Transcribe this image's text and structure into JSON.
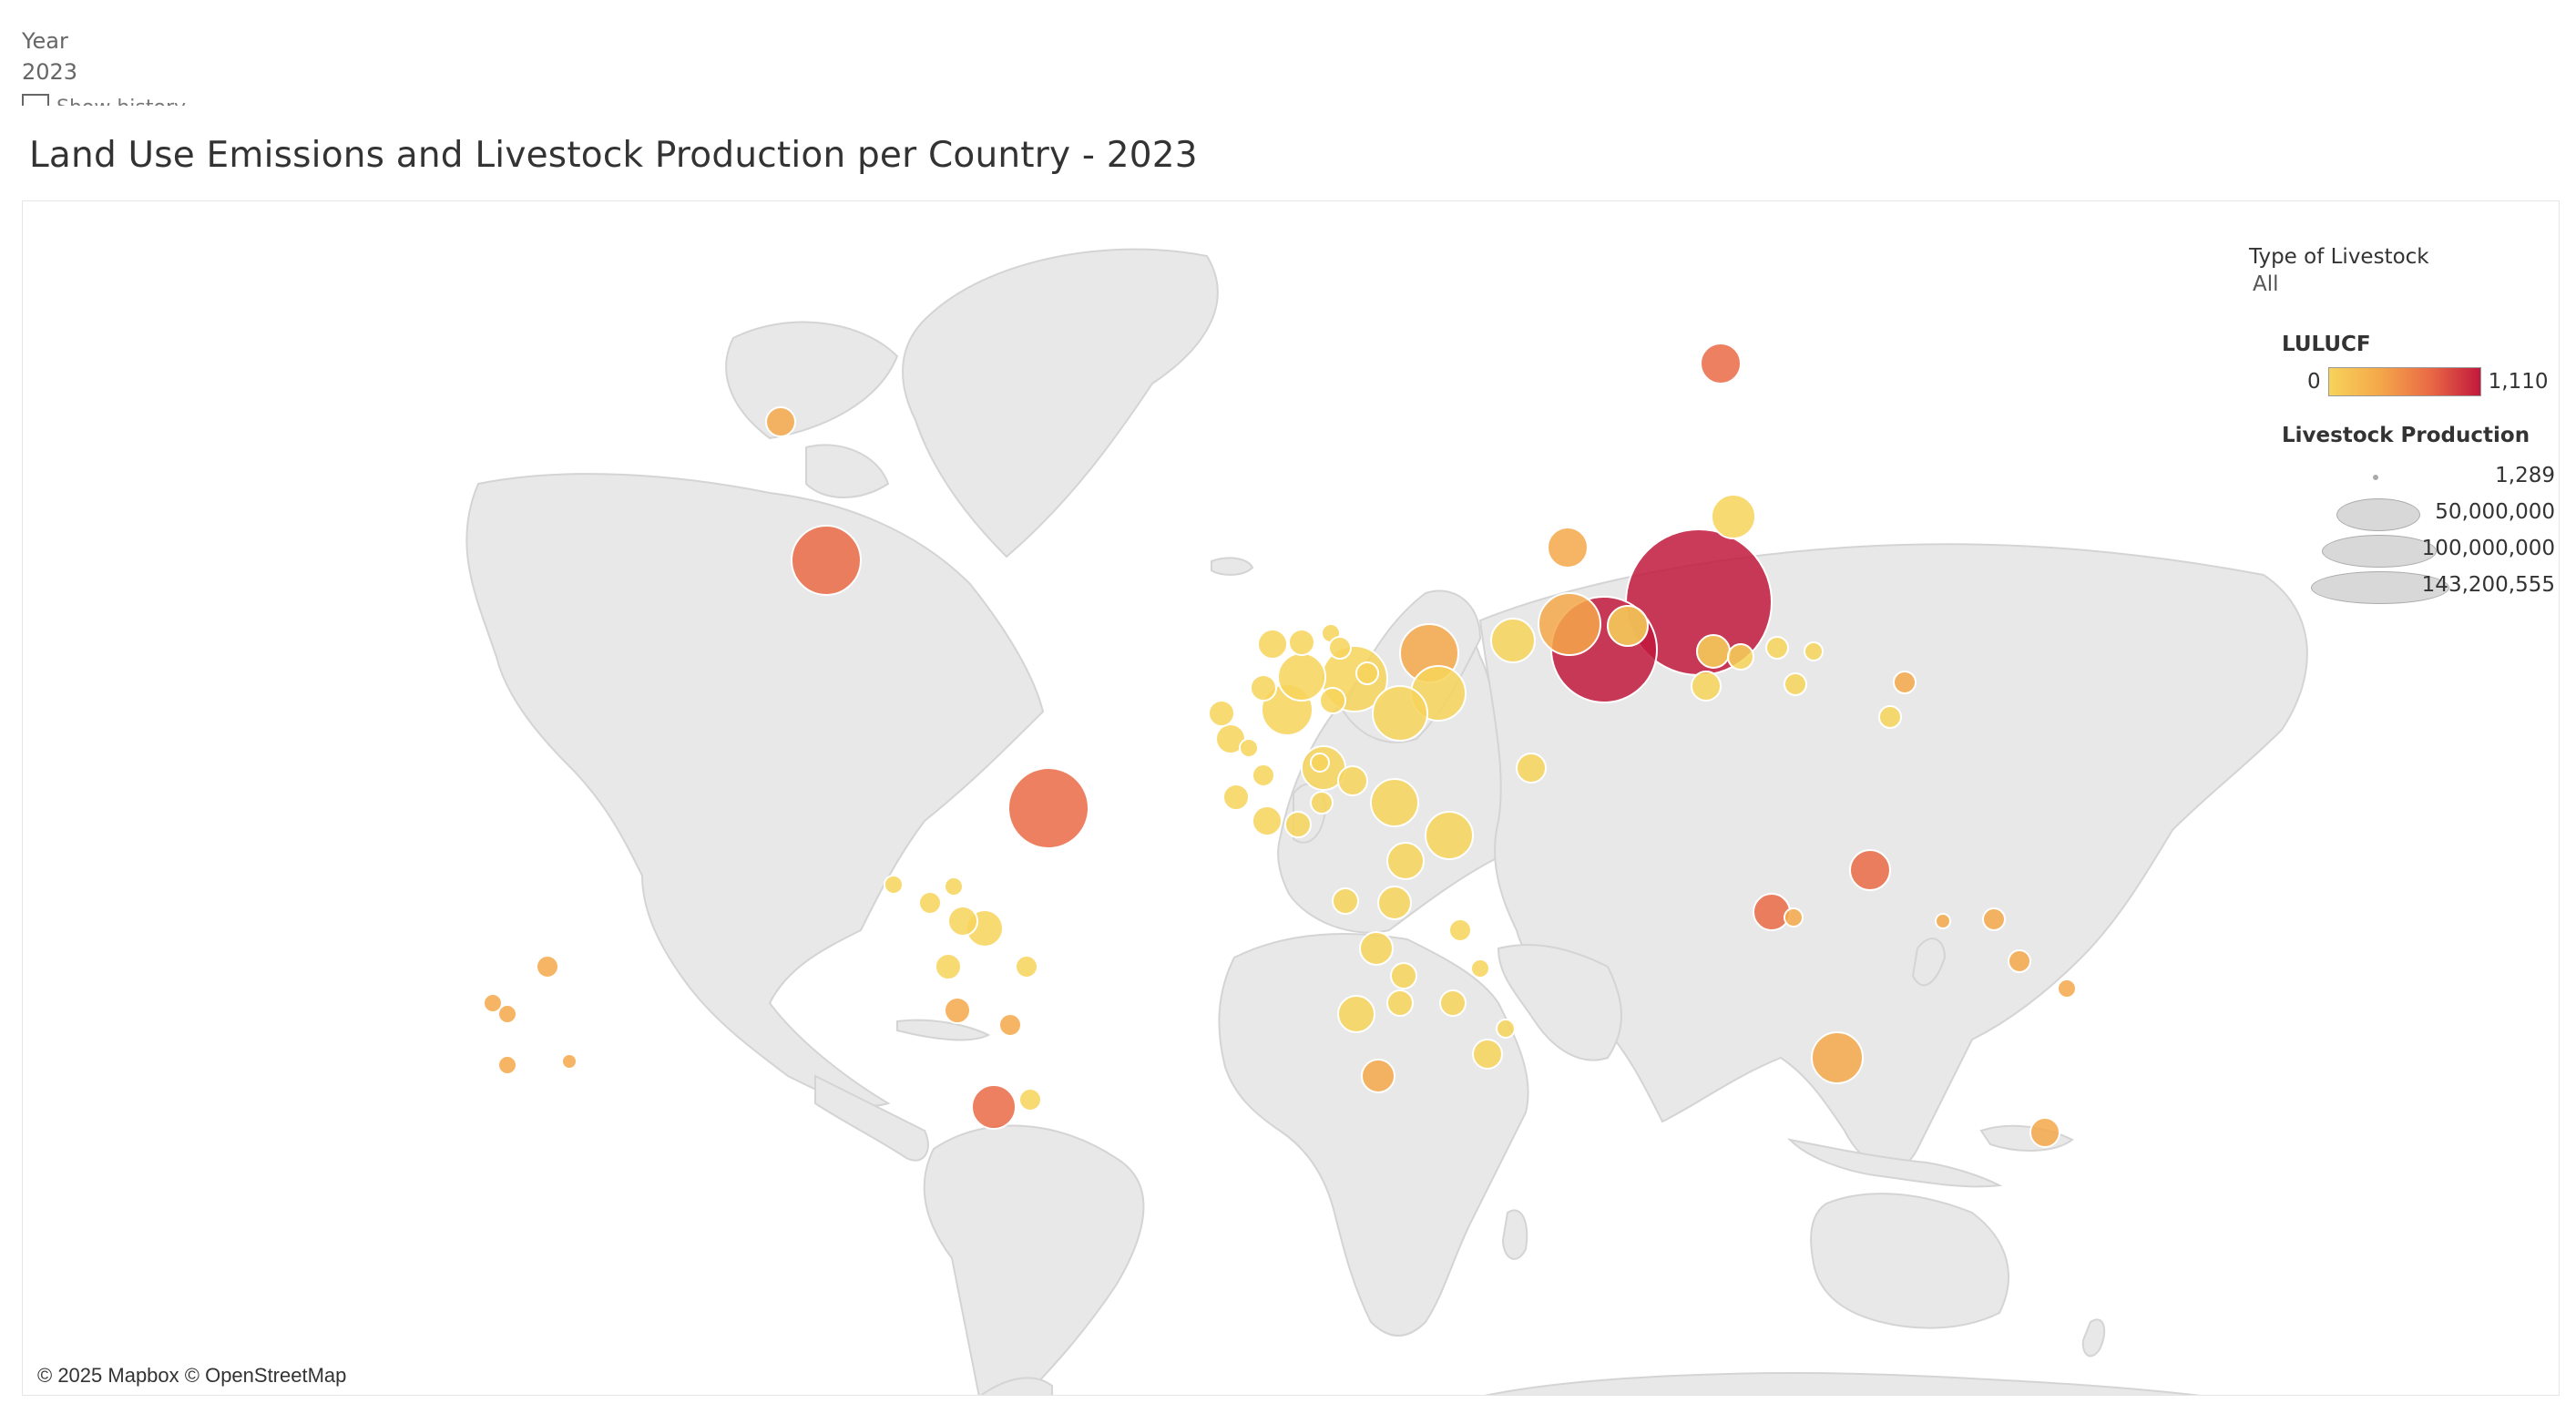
{
  "filter": {
    "label": "Year",
    "value": "2023",
    "history_label": "Show history"
  },
  "title": "Land Use Emissions and Livestock Production per Country - 2023",
  "attribution": "© 2025 Mapbox © OpenStreetMap",
  "legend": {
    "type_title": "Type of Livestock",
    "type_value": "All",
    "color_title": "LULUCF",
    "color_min": "0",
    "color_max": "1,110",
    "colors": [
      "#f7d35a",
      "#f4a84a",
      "#ea6a45",
      "#c1183c"
    ],
    "size_title": "Livestock Production",
    "size_labels": [
      "1,289",
      "50,000,000",
      "100,000,000",
      "143,200,555"
    ]
  },
  "map": {
    "land_color": "#e7e7e7",
    "border_color": "#cfcfcf"
  }
}
